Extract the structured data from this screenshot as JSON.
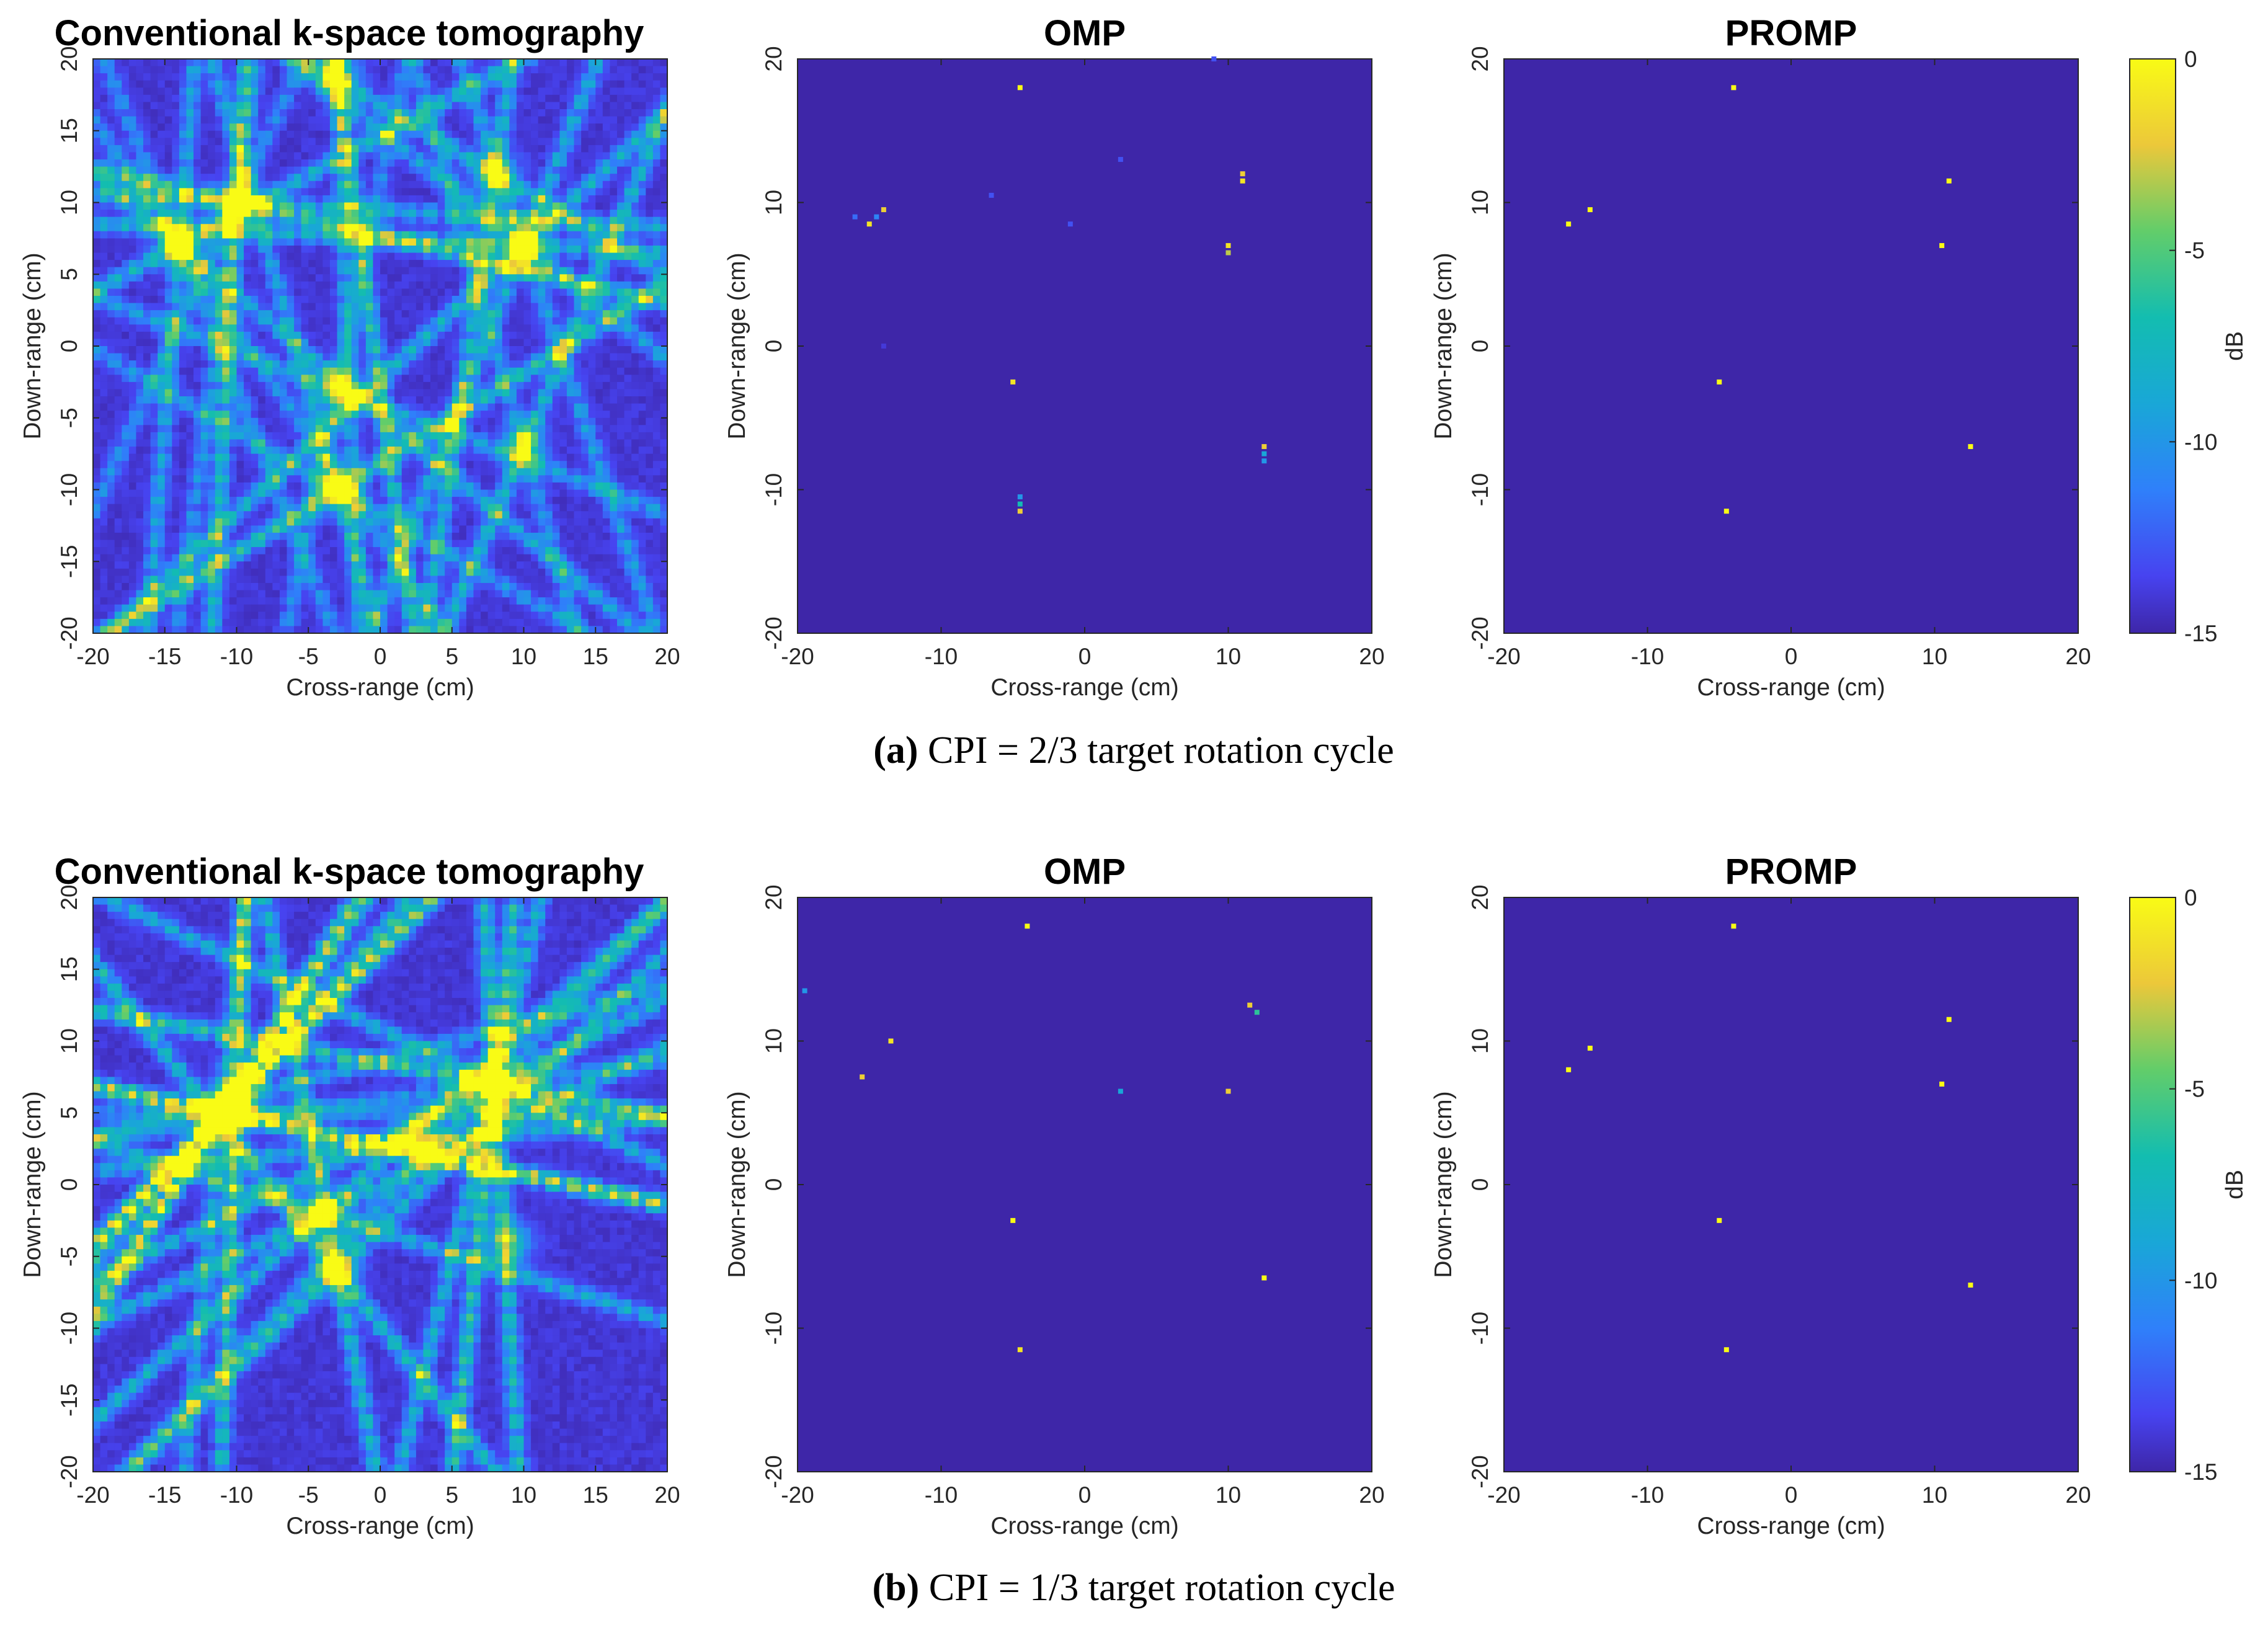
{
  "figure": {
    "rows": [
      {
        "caption_letter": "(a)",
        "caption_text": "CPI = 2/3 target rotation cycle",
        "panels": [
          {
            "title": "Conventional k-space tomography",
            "kind": "tomo",
            "seed": 7
          },
          {
            "title": "OMP",
            "kind": "sparse",
            "points": [
              [
                -4.5,
                18,
                0
              ],
              [
                9,
                20,
                -13
              ],
              [
                -14,
                9.5,
                -2
              ],
              [
                -14.5,
                9,
                -11
              ],
              [
                -15,
                8.5,
                -1
              ],
              [
                -16,
                9,
                -12
              ],
              [
                -6.5,
                10.5,
                -13
              ],
              [
                2.5,
                13,
                -13
              ],
              [
                -1,
                8.5,
                -13
              ],
              [
                11,
                12,
                -2
              ],
              [
                11,
                11.5,
                -1
              ],
              [
                10,
                7,
                -1
              ],
              [
                10,
                6.5,
                -3
              ],
              [
                -5,
                -2.5,
                -1
              ],
              [
                12.5,
                -7,
                -2
              ],
              [
                12.5,
                -7.5,
                -9
              ],
              [
                12.5,
                -8,
                -10
              ],
              [
                -4.5,
                -10.5,
                -10
              ],
              [
                -4.5,
                -11,
                -7
              ],
              [
                -4.5,
                -11.5,
                -2
              ],
              [
                -14,
                0,
                -14
              ]
            ]
          },
          {
            "title": "PROMP",
            "kind": "sparse",
            "points": [
              [
                -4,
                18,
                0
              ],
              [
                -15.5,
                8.5,
                0
              ],
              [
                -14,
                9.5,
                0
              ],
              [
                11,
                11.5,
                0
              ],
              [
                10.5,
                7,
                0
              ],
              [
                -5,
                -2.5,
                0
              ],
              [
                12.5,
                -7,
                0
              ],
              [
                -4.5,
                -11.5,
                0
              ]
            ]
          }
        ]
      },
      {
        "caption_letter": "(b)",
        "caption_text": "CPI = 1/3 target rotation cycle",
        "panels": [
          {
            "title": "Conventional k-space tomography",
            "kind": "tomo",
            "seed": 23
          },
          {
            "title": "OMP",
            "kind": "sparse",
            "points": [
              [
                -4,
                18,
                0
              ],
              [
                -19.5,
                13.5,
                -10
              ],
              [
                11.5,
                12.5,
                -2
              ],
              [
                12,
                12,
                -6
              ],
              [
                -13.5,
                10,
                -1
              ],
              [
                -15.5,
                7.5,
                -2
              ],
              [
                2.5,
                6.5,
                -9
              ],
              [
                10,
                6.5,
                -2
              ],
              [
                -5,
                -2.5,
                0
              ],
              [
                12.5,
                -6.5,
                0
              ],
              [
                -4.5,
                -11.5,
                -1
              ]
            ]
          },
          {
            "title": "PROMP",
            "kind": "sparse",
            "points": [
              [
                -4,
                18,
                0
              ],
              [
                -15.5,
                8,
                0
              ],
              [
                -14,
                9.5,
                0
              ],
              [
                11,
                11.5,
                0
              ],
              [
                10.5,
                7,
                0
              ],
              [
                -5,
                -2.5,
                0
              ],
              [
                12.5,
                -7,
                0
              ],
              [
                -4.5,
                -11.5,
                0
              ]
            ]
          }
        ]
      }
    ],
    "colorbar": {
      "label": "dB",
      "ticks": [
        0,
        -5,
        -10,
        -15
      ],
      "min": -15,
      "max": 0
    }
  },
  "chart_data": [
    {
      "type": "heatmap",
      "title": "Conventional k-space tomography",
      "xlabel": "Cross-range (cm)",
      "ylabel": "Down-range (cm)",
      "xlim": [
        -20,
        20
      ],
      "ylim": [
        -20,
        20
      ],
      "xticks": [
        -20,
        -15,
        -10,
        -5,
        0,
        5,
        10,
        15,
        20
      ],
      "yticks": [
        -20,
        -15,
        -10,
        -5,
        0,
        5,
        10,
        15,
        20
      ],
      "colorbar_range_dB": [
        -15,
        0
      ]
    },
    {
      "type": "scatter",
      "title": "OMP",
      "xlabel": "Cross-range (cm)",
      "ylabel": "Down-range (cm)",
      "xlim": [
        -20,
        20
      ],
      "ylim": [
        -20,
        20
      ],
      "xticks": [
        -20,
        -10,
        0,
        10,
        20
      ],
      "yticks": [
        -20,
        -10,
        0,
        10,
        20
      ],
      "colorbar_range_dB": [
        -15,
        0
      ]
    },
    {
      "type": "scatter",
      "title": "PROMP",
      "xlabel": "Cross-range (cm)",
      "ylabel": "Down-range (cm)",
      "xlim": [
        -20,
        20
      ],
      "ylim": [
        -20,
        20
      ],
      "xticks": [
        -20,
        -10,
        0,
        10,
        20
      ],
      "yticks": [
        -20,
        -10,
        0,
        10,
        20
      ],
      "colorbar_label": "dB",
      "colorbar_ticks": [
        0,
        -5,
        -10,
        -15
      ],
      "colorbar_range_dB": [
        -15,
        0
      ]
    }
  ]
}
